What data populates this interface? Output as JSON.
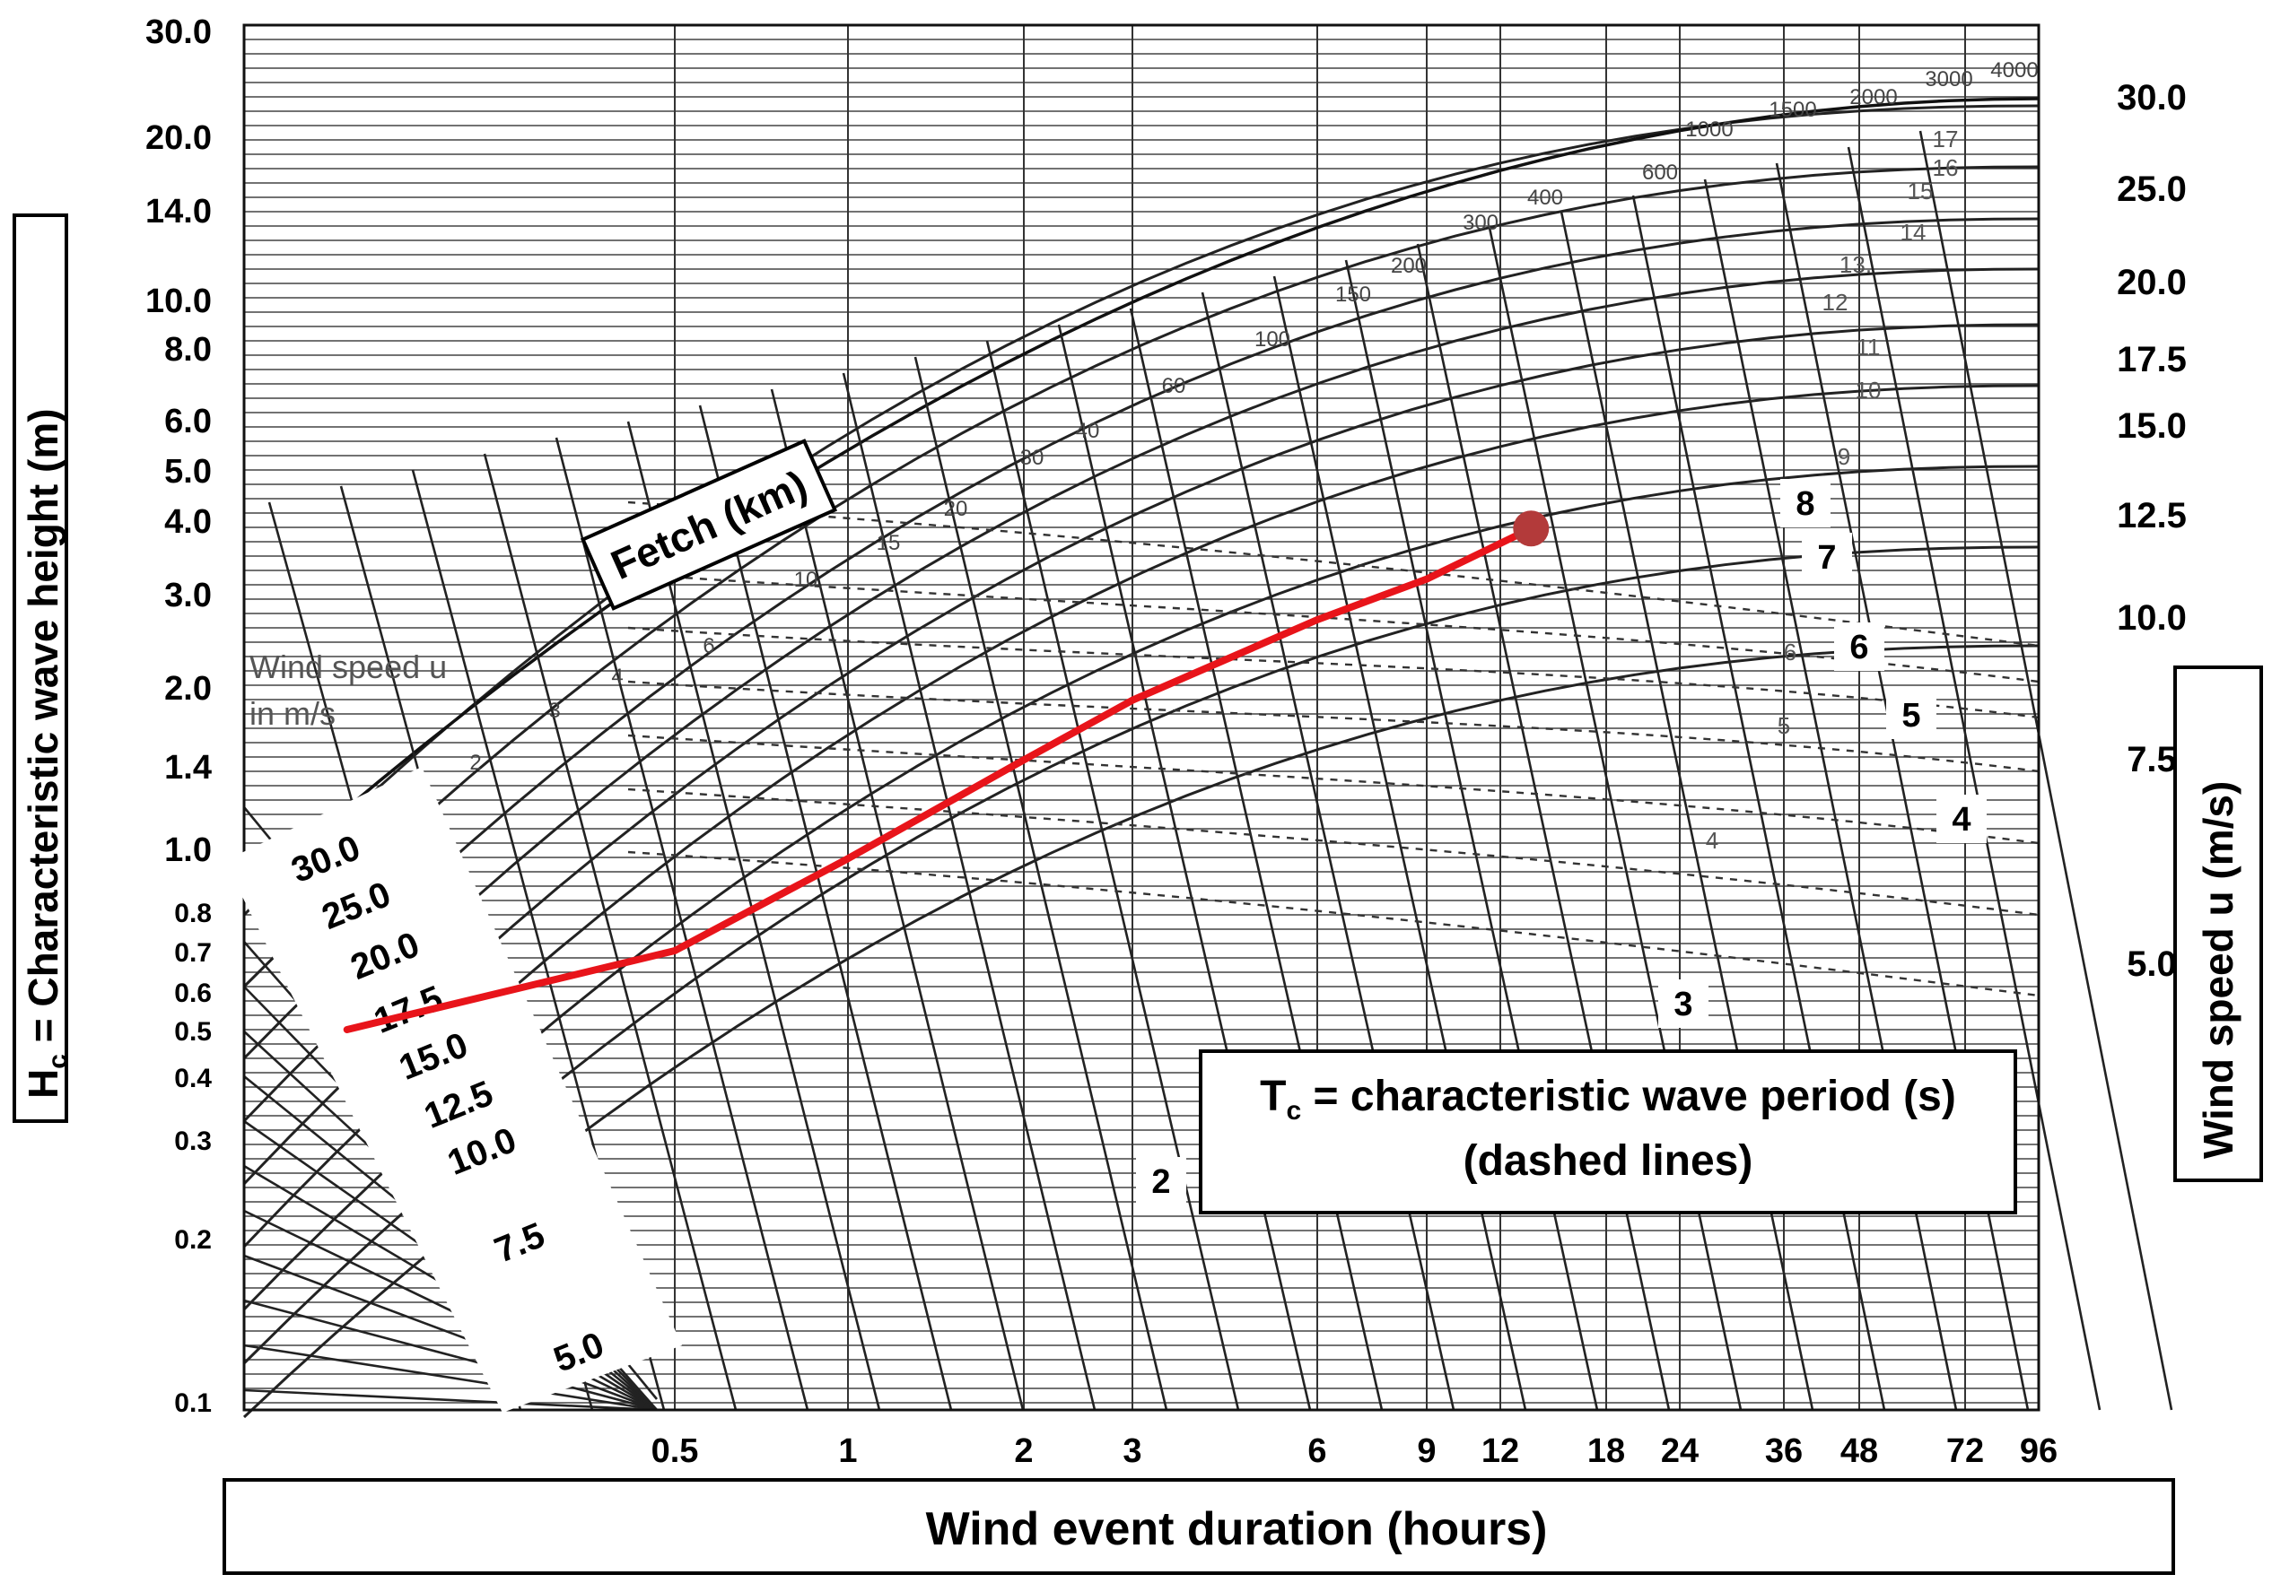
{
  "chart_data": {
    "type": "line",
    "ylabel_left": "H",
    "ylabel_left_sub": "c",
    "ylabel_left_rest": " = Characteristic wave height (m)",
    "ylabel_right": "Wind speed u (m/s)",
    "xlabel": "Wind event duration (hours)",
    "fetch_label": "Fetch (km)",
    "period_label_line1_main": "T",
    "period_label_line1_sub": "c",
    "period_label_line1_rest": " = characteristic wave period (s)",
    "period_label_line2": "(dashed lines)",
    "wind_speed_note_line1": "Wind speed u",
    "wind_speed_note_line2": "in m/s",
    "left_ticks": [
      {
        "label": "30.0",
        "value": 30
      },
      {
        "label": "20.0",
        "value": 20
      },
      {
        "label": "14.0",
        "value": 14
      },
      {
        "label": "10.0",
        "value": 10
      },
      {
        "label": "8.0",
        "value": 8
      },
      {
        "label": "6.0",
        "value": 6
      },
      {
        "label": "5.0",
        "value": 5
      },
      {
        "label": "4.0",
        "value": 4
      },
      {
        "label": "3.0",
        "value": 3
      },
      {
        "label": "2.0",
        "value": 2
      },
      {
        "label": "1.4",
        "value": 1.4
      },
      {
        "label": "1.0",
        "value": 1
      },
      {
        "label": "0.8",
        "value": 0.8
      },
      {
        "label": "0.7",
        "value": 0.7
      },
      {
        "label": "0.6",
        "value": 0.6
      },
      {
        "label": "0.5",
        "value": 0.5
      },
      {
        "label": "0.4",
        "value": 0.4
      },
      {
        "label": "0.3",
        "value": 0.3
      },
      {
        "label": "0.2",
        "value": 0.2
      },
      {
        "label": "0.1",
        "value": 0.1
      }
    ],
    "bottom_ticks": [
      {
        "label": "0.5",
        "value": 0.5
      },
      {
        "label": "1",
        "value": 1
      },
      {
        "label": "2",
        "value": 2
      },
      {
        "label": "3",
        "value": 3
      },
      {
        "label": "6",
        "value": 6
      },
      {
        "label": "9",
        "value": 9
      },
      {
        "label": "12",
        "value": 12
      },
      {
        "label": "18",
        "value": 18
      },
      {
        "label": "24",
        "value": 24
      },
      {
        "label": "36",
        "value": 36
      },
      {
        "label": "48",
        "value": 48
      },
      {
        "label": "72",
        "value": 72
      },
      {
        "label": "96",
        "value": 96
      }
    ],
    "right_ticks": [
      {
        "label": "30.0",
        "value": 30
      },
      {
        "label": "25.0",
        "value": 25
      },
      {
        "label": "20.0",
        "value": 20
      },
      {
        "label": "17.5",
        "value": 17.5
      },
      {
        "label": "15.0",
        "value": 15
      },
      {
        "label": "12.5",
        "value": 12.5
      },
      {
        "label": "10.0",
        "value": 10
      },
      {
        "label": "7.5",
        "value": 7.5
      },
      {
        "label": "5.0",
        "value": 5
      }
    ],
    "wind_speed_labels": [
      "30.0",
      "25.0",
      "20.0",
      "17.5",
      "15.0",
      "12.5",
      "10.0",
      "7.5",
      "5.0"
    ],
    "period_labels_bold": [
      "8",
      "7",
      "6",
      "5",
      "4",
      "3",
      "2"
    ],
    "period_labels_small": [
      "17",
      "16",
      "15",
      "14",
      "13.",
      "12",
      "11",
      "10",
      "9",
      "6",
      "5",
      "4"
    ],
    "fetch_labels": [
      "1.5",
      "2",
      "3",
      "4",
      "6",
      "10",
      "15",
      "20",
      "30",
      "40",
      "60",
      "100",
      "150",
      "200",
      "300",
      "400",
      "600",
      "1000",
      "1500",
      "2000",
      "3000",
      "4000"
    ],
    "xlim_hours": [
      0.15,
      96
    ],
    "ylim_m": [
      0.1,
      30
    ],
    "highlight_path": {
      "color": "#e8141a",
      "points": [
        [
          0.2,
          0.5
        ],
        [
          0.5,
          0.7
        ],
        [
          1,
          0.97
        ],
        [
          2,
          1.45
        ],
        [
          3,
          1.9
        ],
        [
          6,
          2.7
        ],
        [
          9,
          3.2
        ],
        [
          13.5,
          3.9
        ]
      ]
    },
    "highlight_point": {
      "duration_h": 13.5,
      "height_m": 3.9,
      "color": "#b33a3a"
    }
  }
}
